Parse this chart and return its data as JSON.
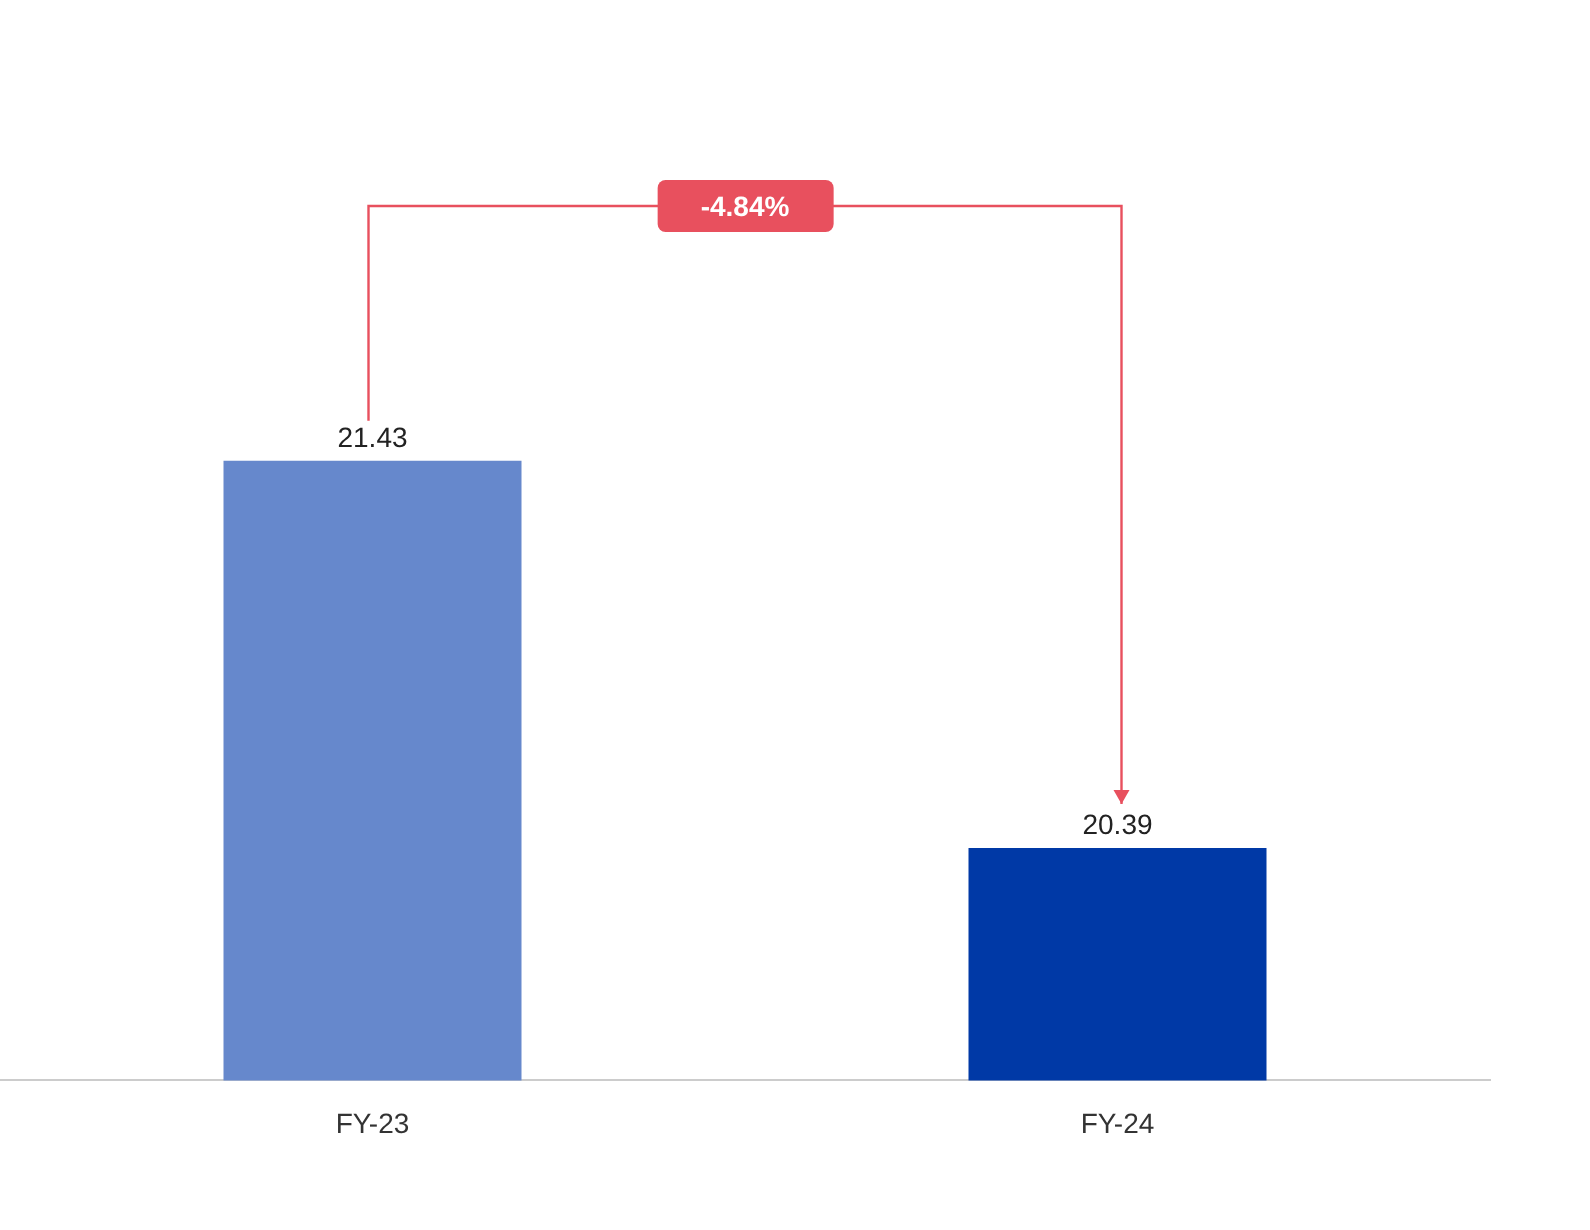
{
  "chart_data": {
    "type": "bar",
    "categories": [
      "FY-23",
      "FY-24"
    ],
    "values": [
      21.43,
      20.39
    ],
    "colors": [
      "#6688cc",
      "#0039a6"
    ],
    "data_labels": true,
    "grid": false,
    "legend": false,
    "annotations": [
      "-4.84%"
    ]
  }
}
